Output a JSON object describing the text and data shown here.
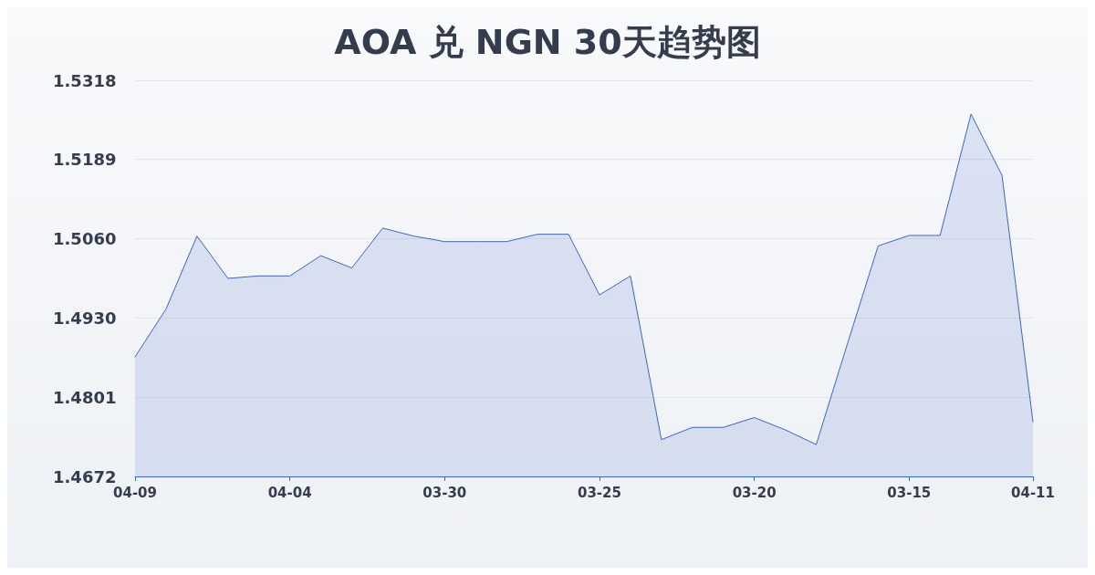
{
  "chart_data": {
    "type": "area",
    "title": "AOA 兑 NGN 30天趋势图",
    "categories": [
      "04-09",
      null,
      null,
      null,
      null,
      "04-04",
      null,
      null,
      null,
      null,
      "03-30",
      null,
      null,
      null,
      null,
      "03-25",
      null,
      null,
      null,
      null,
      "03-20",
      null,
      null,
      null,
      null,
      "03-15",
      null,
      null,
      null,
      "04-11"
    ],
    "series": [
      {
        "color": "#3a66c8",
        "values": [
          1.4867,
          1.4945,
          1.5064,
          1.4995,
          1.4999,
          1.4999,
          1.5032,
          1.5012,
          1.5077,
          1.5064,
          1.5055,
          1.5055,
          1.5055,
          1.5067,
          1.5067,
          1.4968,
          1.4999,
          1.4732,
          1.4752,
          1.4752,
          1.4768,
          1.4748,
          1.4724,
          1.4887,
          1.5048,
          1.5065,
          1.5065,
          1.5263,
          1.5163,
          1.4761
        ]
      }
    ],
    "ylim": [
      1.4672,
      1.5318
    ],
    "yticks": [
      {
        "value": 1.4672,
        "label": "1.4672"
      },
      {
        "value": 1.4801,
        "label": "1.4801"
      },
      {
        "value": 1.493,
        "label": "1.4930"
      },
      {
        "value": 1.506,
        "label": "1.5060"
      },
      {
        "value": 1.5189,
        "label": "1.5189"
      },
      {
        "value": 1.5318,
        "label": "1.5318"
      }
    ],
    "grid": "y",
    "marker": "none",
    "line_style": "solid"
  }
}
